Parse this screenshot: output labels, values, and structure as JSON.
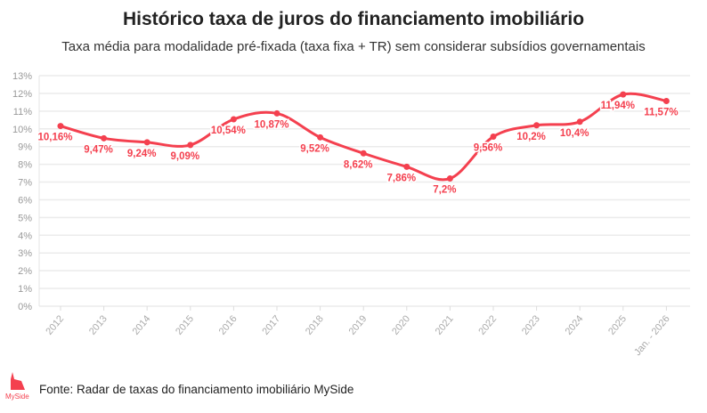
{
  "chart_data": {
    "type": "line",
    "title": "Histórico taxa de juros do financiamento imobiliário",
    "subtitle": "Taxa média para modalidade pré-fixada (taxa fixa + TR) sem considerar subsídios governamentais",
    "categories": [
      "2012",
      "2013",
      "2014",
      "2015",
      "2016",
      "2017",
      "2018",
      "2019",
      "2020",
      "2021",
      "2022",
      "2023",
      "2024",
      "2025",
      "Jan. - 2026"
    ],
    "values": [
      10.16,
      9.47,
      9.24,
      9.09,
      10.54,
      10.87,
      9.52,
      8.62,
      7.86,
      7.2,
      9.56,
      10.2,
      10.4,
      11.94,
      11.57
    ],
    "data_labels": [
      "10,16%",
      "9,47%",
      "9,24%",
      "9,09%",
      "10,54%",
      "10,87%",
      "9,52%",
      "8,62%",
      "7,86%",
      "7,2%",
      "9,56%",
      "10,2%",
      "10,4%",
      "11,94%",
      "11,57%"
    ],
    "yticks": [
      "0%",
      "1%",
      "2%",
      "3%",
      "4%",
      "5%",
      "6%",
      "7%",
      "8%",
      "9%",
      "10%",
      "11%",
      "12%",
      "13%"
    ],
    "ylim": [
      0,
      13
    ],
    "grid": true,
    "color": "#f4404f"
  },
  "footer": {
    "source": "Fonte: Radar de taxas do financiamento imobiliário MySide",
    "logo_text": "MySide"
  }
}
